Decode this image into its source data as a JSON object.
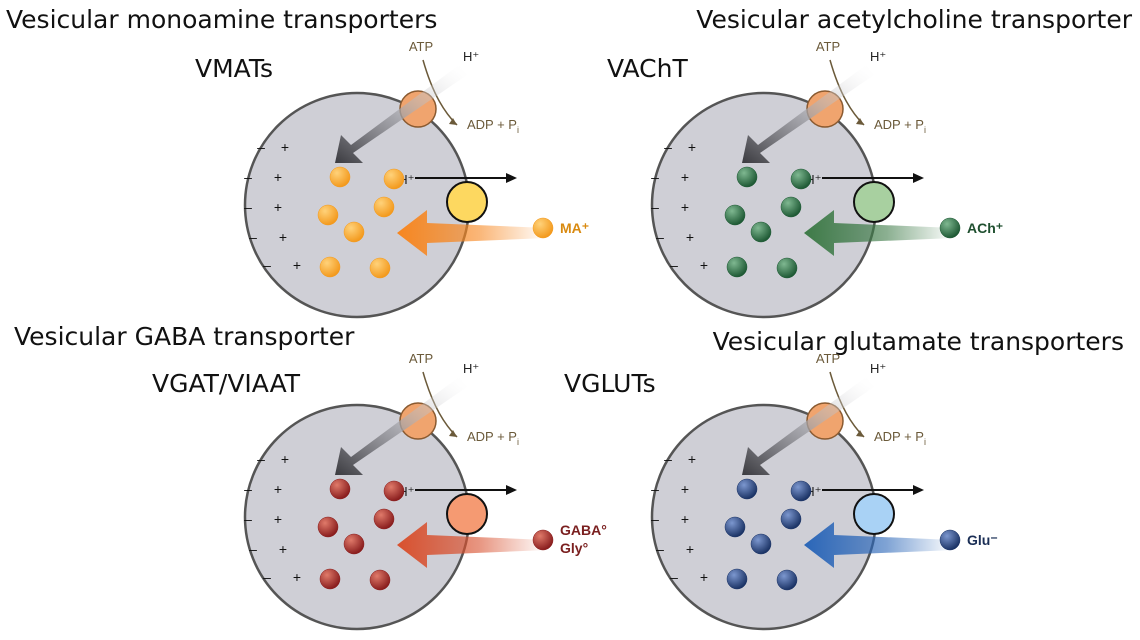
{
  "panels": [
    {
      "title": "Vesicular monoamine transporters",
      "abbr": "VMATs",
      "atp": "ATP",
      "h_plus": "H⁺",
      "adp": "ADP + P",
      "adp_sub": "i",
      "exchange": "2H⁺",
      "substrate": [
        "MA⁺"
      ],
      "substrate_color": "#d98a10",
      "particle_color": "#f39a1e",
      "particle_light": "#ffd27a",
      "transporter_color": "#fdd860",
      "arrow_color": "#f7861f"
    },
    {
      "title": "Vesicular acetylcholine transporter",
      "abbr": "VAChT",
      "atp": "ATP",
      "h_plus": "H⁺",
      "adp": "ADP + P",
      "adp_sub": "i",
      "exchange": "2H⁺",
      "substrate": [
        "ACh⁺"
      ],
      "substrate_color": "#1f4f2f",
      "particle_color": "#1f5a35",
      "particle_light": "#7fb891",
      "transporter_color": "#a8d0a0",
      "arrow_color": "#3d7a47"
    },
    {
      "title": "Vesicular GABA transporter",
      "abbr": "VGAT/VIAAT",
      "atp": "ATP",
      "h_plus": "H⁺",
      "adp": "ADP + P",
      "adp_sub": "i",
      "exchange": "nH⁺",
      "substrate": [
        "GABA°",
        "Gly°"
      ],
      "substrate_color": "#7a1f1f",
      "particle_color": "#8a1e1e",
      "particle_light": "#e07a6a",
      "transporter_color": "#f59a72",
      "arrow_color": "#d8502e"
    },
    {
      "title": "Vesicular glutamate transporters",
      "abbr": "VGLUTs",
      "atp": "ATP",
      "h_plus": "H⁺",
      "adp": "ADP + P",
      "adp_sub": "i",
      "exchange": "nH⁺",
      "substrate": [
        "Glu⁻"
      ],
      "substrate_color": "#1a2e55",
      "particle_color": "#1c3466",
      "particle_light": "#7c97cf",
      "transporter_color": "#a9d2f5",
      "arrow_color": "#2a66b8"
    }
  ],
  "membrane": {
    "minus": "–",
    "plus": "+"
  },
  "colors": {
    "vesicle_fill": "#cfcfd6",
    "vesicle_stroke": "#555555",
    "atpase_fill": "#f0a46e",
    "proton_arrow": "#3a3a3f"
  }
}
